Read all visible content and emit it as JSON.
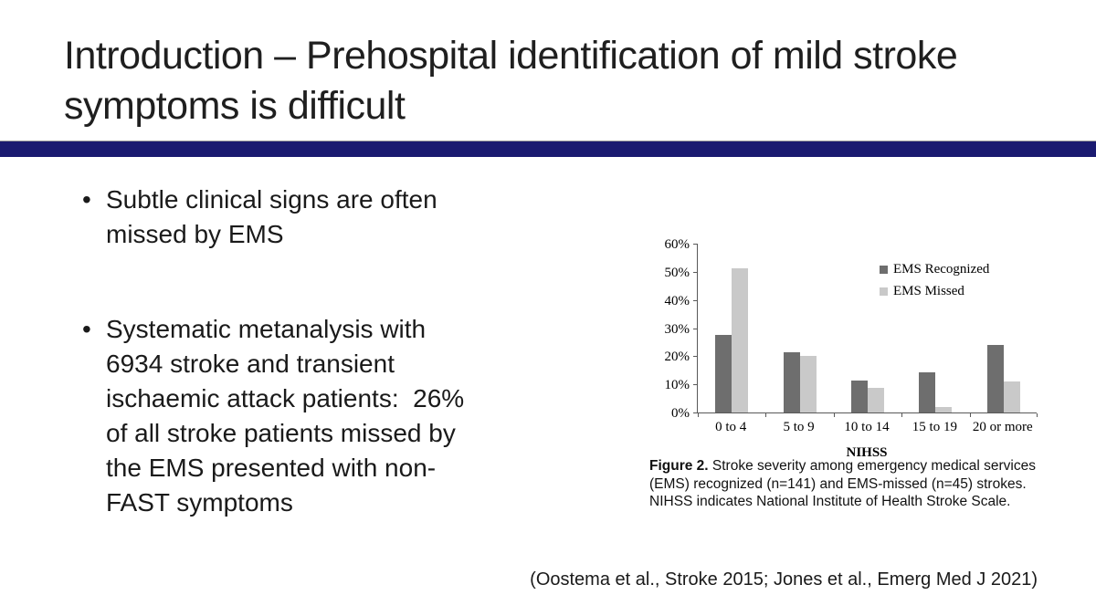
{
  "slide": {
    "title": "Introduction – Prehospital identification of mild stroke symptoms is difficult",
    "accent_bar_color": "#1a1a70",
    "bullet_char": "•",
    "bullets": [
      "Subtle clinical signs are often\nmissed by EMS",
      "Systematic metanalysis with\n6934 stroke and transient\nischaemic attack patients:  26%\nof all stroke patients missed by\nthe EMS presented with non-\nFAST symptoms"
    ],
    "citation": "(Oostema et al., Stroke 2015; Jones et al., Emerg Med J 2021)"
  },
  "figure": {
    "caption_label": "Figure 2.",
    "caption_text": " Stroke severity among emergency medical services (EMS) recognized (n=141) and EMS-missed (n=45) strokes. NIHSS indicates National Institute of Health Stroke Scale."
  },
  "chart_data": {
    "type": "bar",
    "categories": [
      "0 to 4",
      "5 to 9",
      "10 to 14",
      "15 to 19",
      "20 or more"
    ],
    "series": [
      {
        "name": "EMS Recognized",
        "color": "#6e6e6e",
        "texture": "solid",
        "values": [
          27.7,
          21.3,
          11.3,
          14.2,
          24.1
        ]
      },
      {
        "name": "EMS Missed",
        "color": "#c9c9c9",
        "texture": "dots",
        "values": [
          51.1,
          20.0,
          8.7,
          2.1,
          11.0
        ]
      }
    ],
    "title": "",
    "xlabel": "NIHSS",
    "ylabel": "",
    "ylim": [
      0,
      60
    ],
    "ytick_step": 10,
    "ytick_labels": [
      "0%",
      "10%",
      "20%",
      "30%",
      "40%",
      "50%",
      "60%"
    ],
    "legend_position": "top-right",
    "grid": false,
    "axis_color": "#595959"
  }
}
